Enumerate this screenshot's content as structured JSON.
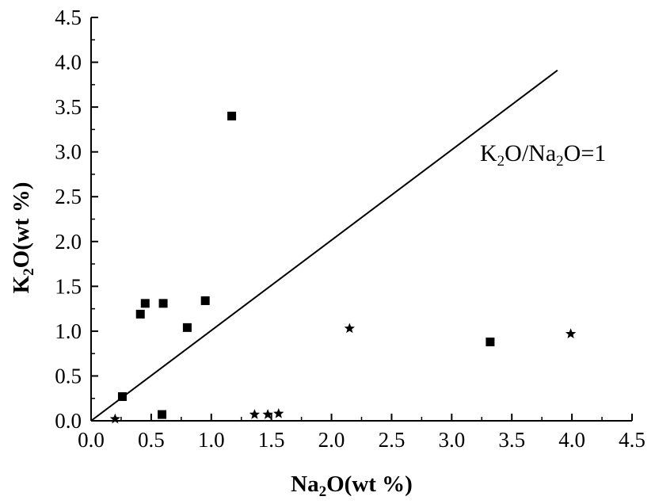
{
  "chart_data": {
    "type": "scatter",
    "title": "",
    "xlabel": {
      "pre": "Na",
      "sub": "2",
      "post": "O(wt %)"
    },
    "ylabel": {
      "pre": "K",
      "sub": "2",
      "post": "O(wt %)"
    },
    "xlim": [
      0.0,
      4.5
    ],
    "ylim": [
      0.0,
      4.5
    ],
    "xticks": [
      "0.0",
      "0.5",
      "1.0",
      "1.5",
      "2.0",
      "2.5",
      "3.0",
      "3.5",
      "4.0",
      "4.5"
    ],
    "yticks": [
      "0.0",
      "0.5",
      "1.0",
      "1.5",
      "2.0",
      "2.5",
      "3.0",
      "3.5",
      "4.0",
      "4.5"
    ],
    "grid": false,
    "legend": "none",
    "series": [
      {
        "marker": "square",
        "color": "#000000",
        "x": [
          0.26,
          0.41,
          0.45,
          0.59,
          0.6,
          0.8,
          0.95,
          1.17,
          3.32
        ],
        "y": [
          0.27,
          1.19,
          1.31,
          0.07,
          1.31,
          1.04,
          1.34,
          3.4,
          0.88
        ]
      },
      {
        "marker": "star",
        "color": "#000000",
        "x": [
          0.2,
          1.36,
          1.47,
          1.56,
          2.15,
          3.99
        ],
        "y": [
          0.02,
          0.07,
          0.07,
          0.08,
          1.03,
          0.97
        ]
      }
    ],
    "reference_line": {
      "x": [
        0.0,
        3.88
      ],
      "y": [
        0.0,
        3.91
      ],
      "label": {
        "pre1": "K",
        "sub1": "2",
        "mid": "O/Na",
        "sub2": "2",
        "post": "O=1"
      }
    }
  }
}
